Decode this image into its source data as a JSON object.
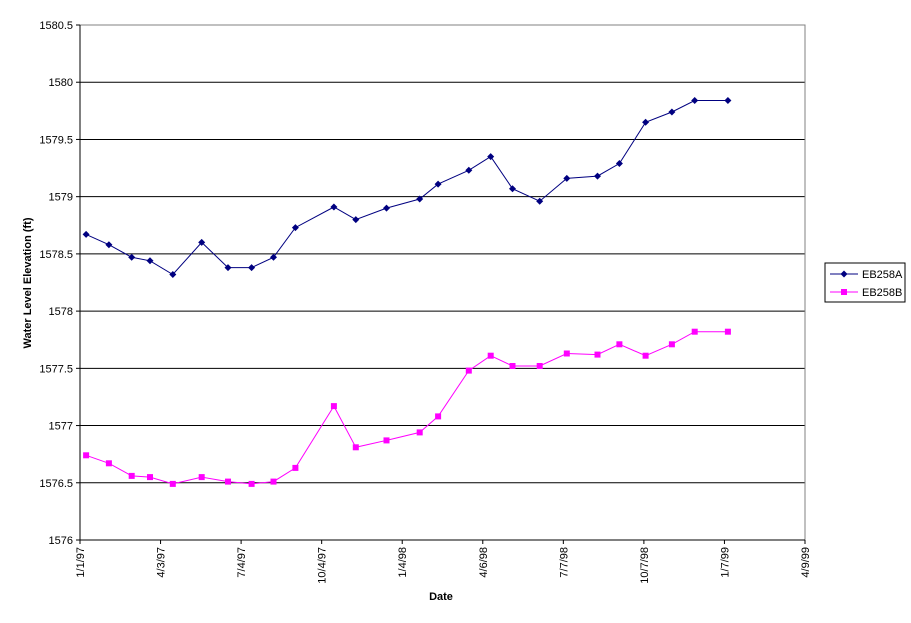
{
  "chart_data": {
    "type": "line",
    "xlabel": "Date",
    "ylabel": "Water Level Elevation (ft)",
    "ylim": [
      1576,
      1580.5
    ],
    "yticks": [
      1576,
      1576.5,
      1577,
      1577.5,
      1578,
      1578.5,
      1579,
      1579.5,
      1580,
      1580.5
    ],
    "yticklabels": [
      "1576",
      "1576.5",
      "1577",
      "1577.5",
      "1578",
      "1578.5",
      "1579",
      "1579.5",
      "1580",
      "1580.5"
    ],
    "xlim": [
      "1997-01-01",
      "1999-04-09"
    ],
    "xticks": [
      "1997-01-01",
      "1997-04-03",
      "1997-07-04",
      "1997-10-04",
      "1998-01-04",
      "1998-04-06",
      "1998-07-07",
      "1998-10-07",
      "1999-01-07",
      "1999-04-09"
    ],
    "xticklabels": [
      "1/1/97",
      "4/3/97",
      "7/4/97",
      "10/4/97",
      "1/4/98",
      "4/6/98",
      "7/7/98",
      "10/7/98",
      "1/7/99",
      "4/9/99"
    ],
    "grid": "horizontal",
    "legend_position": "right",
    "series": [
      {
        "name": "EB258A",
        "color": "#000080",
        "marker": "diamond",
        "x": [
          "1997-01-08",
          "1997-02-03",
          "1997-03-01",
          "1997-03-22",
          "1997-04-17",
          "1997-05-20",
          "1997-06-19",
          "1997-07-16",
          "1997-08-10",
          "1997-09-04",
          "1997-10-18",
          "1997-11-12",
          "1997-12-17",
          "1998-01-24",
          "1998-02-14",
          "1998-03-21",
          "1998-04-15",
          "1998-05-10",
          "1998-06-10",
          "1998-07-11",
          "1998-08-15",
          "1998-09-09",
          "1998-10-09",
          "1998-11-08",
          "1998-12-04",
          "1999-01-11"
        ],
        "values": [
          1578.67,
          1578.58,
          1578.47,
          1578.44,
          1578.32,
          1578.6,
          1578.38,
          1578.38,
          1578.47,
          1578.73,
          1578.91,
          1578.8,
          1578.9,
          1578.98,
          1579.11,
          1579.23,
          1579.35,
          1579.07,
          1578.96,
          1579.16,
          1579.18,
          1579.29,
          1579.65,
          1579.74,
          1579.84,
          1579.84
        ]
      },
      {
        "name": "EB258B",
        "color": "#ff00ff",
        "marker": "square",
        "x": [
          "1997-01-08",
          "1997-02-03",
          "1997-03-01",
          "1997-03-22",
          "1997-04-17",
          "1997-05-20",
          "1997-06-19",
          "1997-07-16",
          "1997-08-10",
          "1997-09-04",
          "1997-10-18",
          "1997-11-12",
          "1997-12-17",
          "1998-01-24",
          "1998-02-14",
          "1998-03-21",
          "1998-04-15",
          "1998-05-10",
          "1998-06-10",
          "1998-07-11",
          "1998-08-15",
          "1998-09-09",
          "1998-10-09",
          "1998-11-08",
          "1998-12-04",
          "1999-01-11"
        ],
        "values": [
          1576.74,
          1576.67,
          1576.56,
          1576.55,
          1576.49,
          1576.55,
          1576.51,
          1576.49,
          1576.51,
          1576.63,
          1577.17,
          1576.81,
          1576.87,
          1576.94,
          1577.08,
          1577.48,
          1577.61,
          1577.52,
          1577.52,
          1577.63,
          1577.62,
          1577.71,
          1577.61,
          1577.71,
          1577.82,
          1577.82
        ]
      }
    ]
  }
}
